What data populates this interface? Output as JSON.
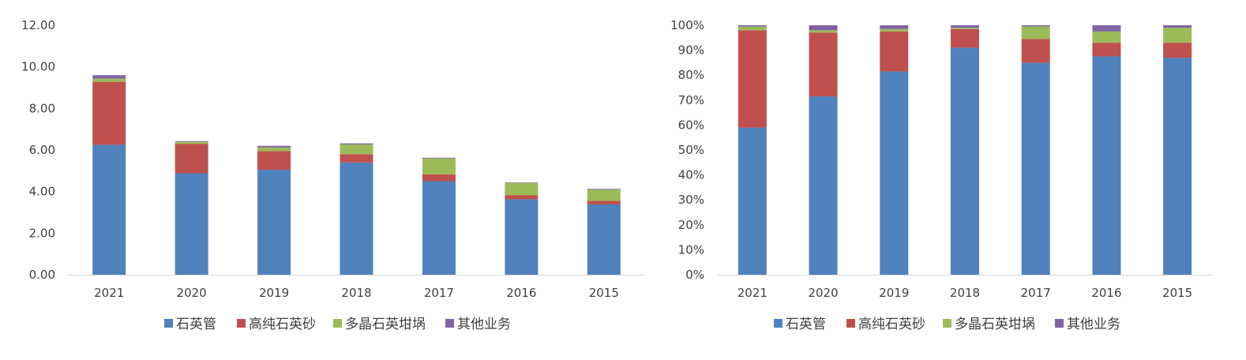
{
  "colors": {
    "石英管": "#4f81bd",
    "高纯石英砂": "#c0504d",
    "多晶石英坩埚": "#9bbb59",
    "其他业务": "#8064a2",
    "axis": "#d9d9d9",
    "text": "#404040"
  },
  "chart_data": [
    {
      "type": "bar",
      "stacked": true,
      "title": "",
      "xlabel": "",
      "ylabel": "",
      "categories": [
        "2021",
        "2020",
        "2019",
        "2018",
        "2017",
        "2016",
        "2015"
      ],
      "ylim": [
        0,
        12
      ],
      "yticks": [
        "0.00",
        "2.00",
        "4.00",
        "6.00",
        "8.00",
        "10.00",
        "12.00"
      ],
      "grid": false,
      "legend": "bottom",
      "series": [
        {
          "name": "石英管",
          "values": [
            6.25,
            4.88,
            5.05,
            5.4,
            4.5,
            3.63,
            3.38
          ]
        },
        {
          "name": "高纯石英砂",
          "values": [
            3.03,
            1.42,
            0.9,
            0.4,
            0.33,
            0.2,
            0.17
          ]
        },
        {
          "name": "多晶石英坩埚",
          "values": [
            0.15,
            0.1,
            0.17,
            0.47,
            0.77,
            0.59,
            0.55
          ]
        },
        {
          "name": "其他业务",
          "values": [
            0.17,
            0.03,
            0.08,
            0.05,
            0.03,
            0.02,
            0.03
          ]
        }
      ]
    },
    {
      "type": "bar",
      "stacked": true,
      "title": "",
      "xlabel": "",
      "ylabel": "",
      "categories": [
        "2021",
        "2020",
        "2019",
        "2018",
        "2017",
        "2016",
        "2015"
      ],
      "ylim": [
        0,
        100
      ],
      "yticks": [
        "0%",
        "10%",
        "20%",
        "30%",
        "40%",
        "50%",
        "60%",
        "70%",
        "80%",
        "90%",
        "100%"
      ],
      "grid": false,
      "legend": "bottom",
      "series": [
        {
          "name": "石英管",
          "values": [
            59,
            71.5,
            81.5,
            91,
            85,
            87.5,
            87
          ]
        },
        {
          "name": "高纯石英砂",
          "values": [
            39,
            25.5,
            16,
            7.5,
            9.5,
            5.5,
            6
          ]
        },
        {
          "name": "多晶石英坩埚",
          "values": [
            1.5,
            1,
            1,
            0.5,
            5,
            4.5,
            6
          ]
        },
        {
          "name": "其他业务",
          "values": [
            0.5,
            2,
            1.5,
            1,
            0.5,
            2.5,
            1
          ]
        }
      ]
    }
  ]
}
